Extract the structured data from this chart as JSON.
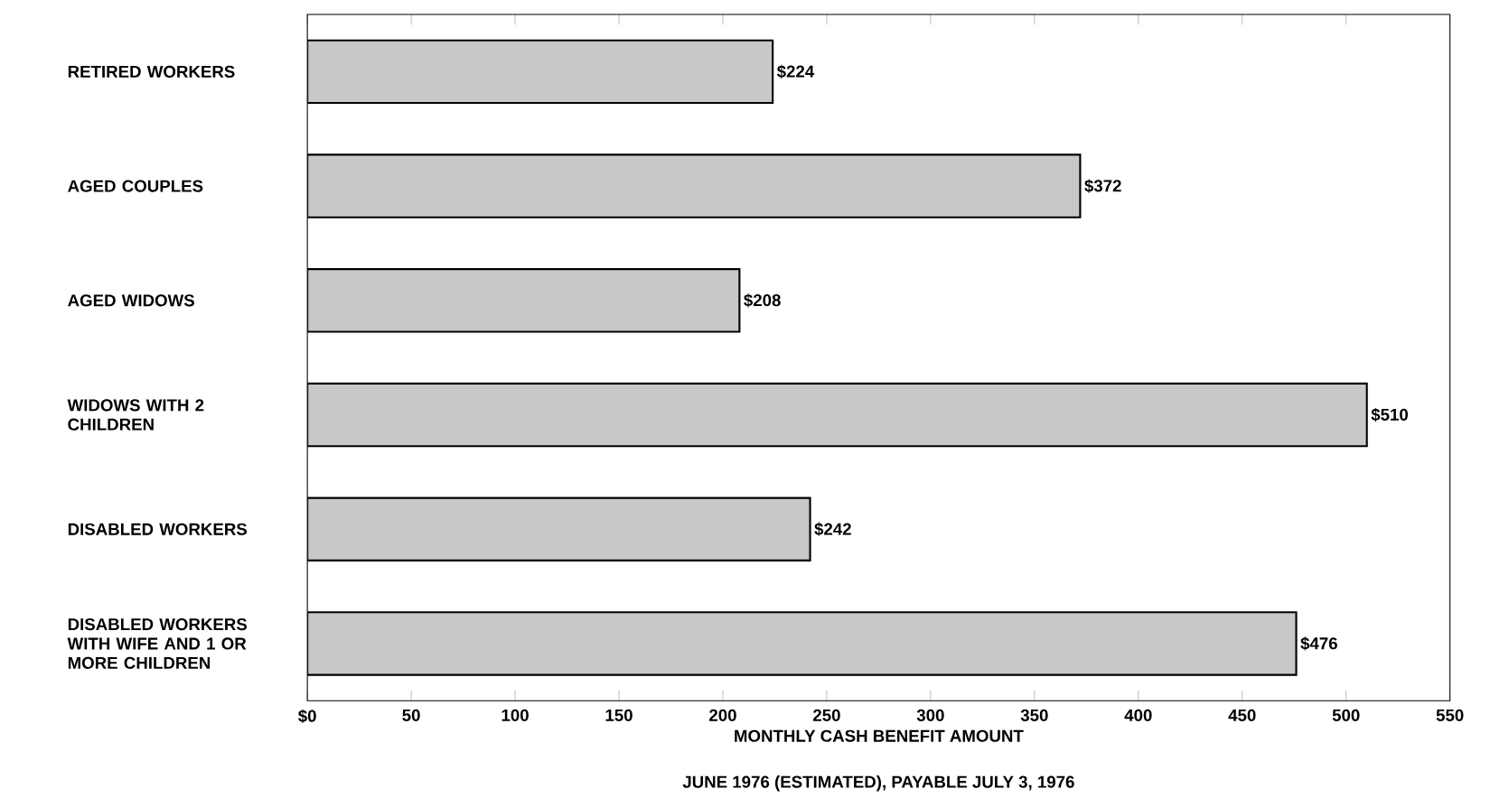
{
  "chart_data": {
    "type": "bar",
    "orientation": "horizontal",
    "categories": [
      "RETIRED WORKERS",
      "AGED COUPLES",
      "AGED WIDOWS",
      "WIDOWS WITH 2 CHILDREN",
      "DISABLED WORKERS",
      "DISABLED WORKERS WITH WIFE AND 1 OR MORE CHILDREN"
    ],
    "values": [
      224,
      372,
      208,
      510,
      242,
      476
    ],
    "value_labels": [
      "$224",
      "$372",
      "$208",
      "$510",
      "$242",
      "$476"
    ],
    "color": "#c8c8c8",
    "xlim": [
      0,
      550
    ],
    "xticks": [
      {
        "value": 0,
        "label": "$0"
      },
      50,
      100,
      150,
      200,
      250,
      300,
      350,
      400,
      450,
      500,
      550
    ],
    "xlabel": "MONTHLY CASH BENEFIT AMOUNT",
    "annotations": [
      "JUNE 1976 (ESTIMATED), PAYABLE JULY 3, 1976"
    ],
    "grid": false
  }
}
